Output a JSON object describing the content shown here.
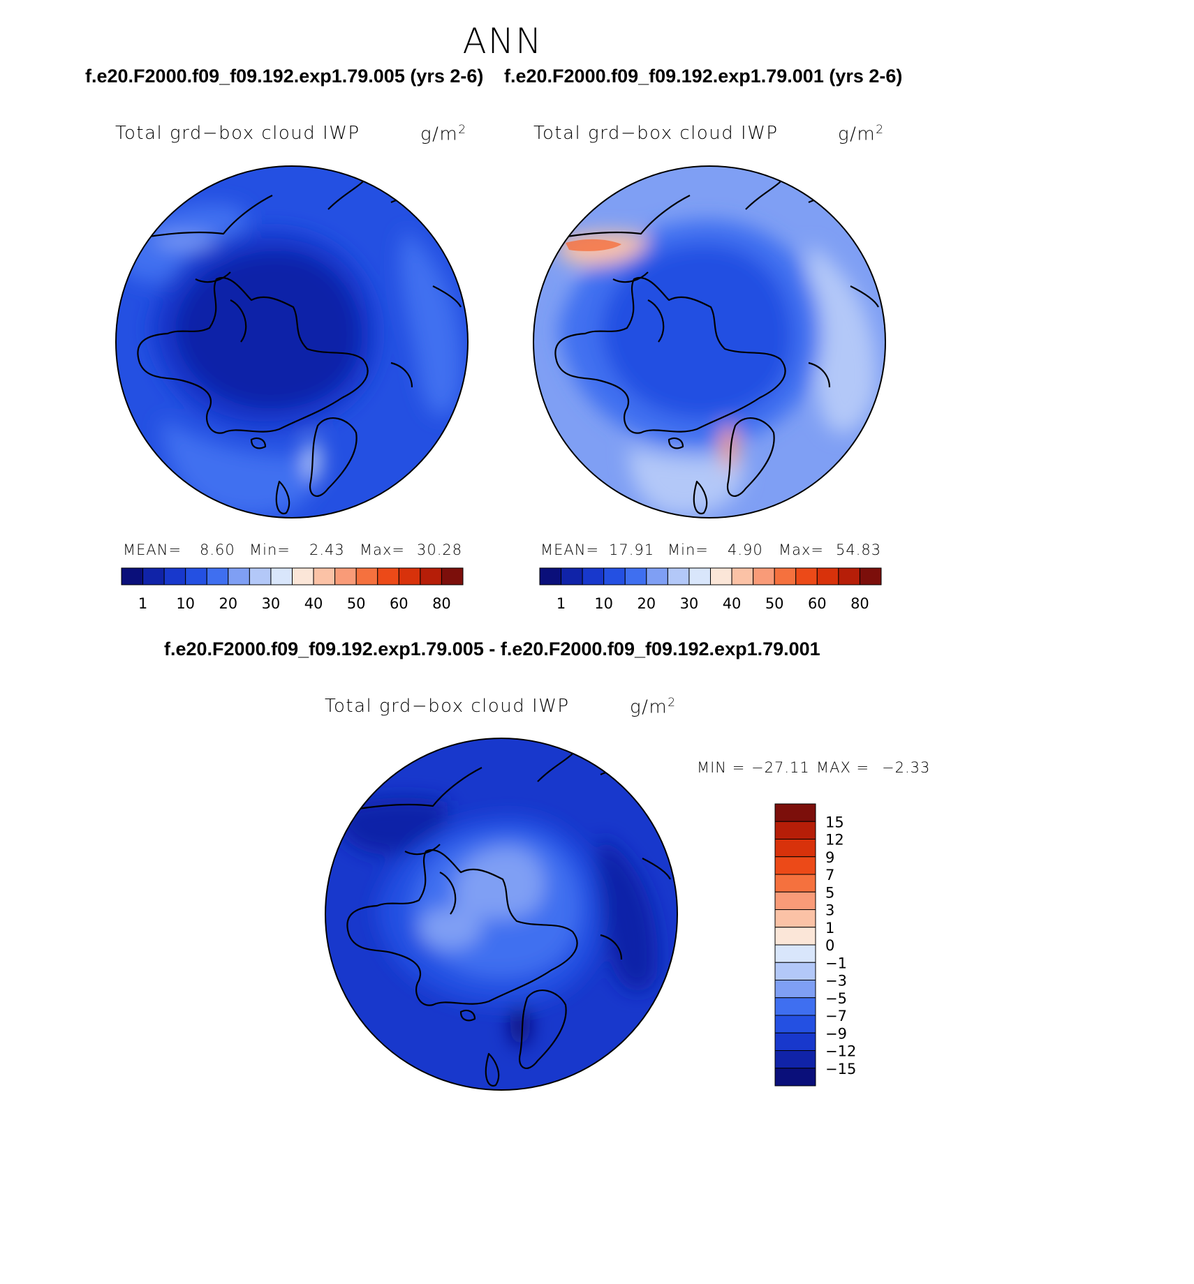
{
  "page_title": "ANN",
  "header": {
    "left_case": "f.e20.F2000.f09_f09.192.exp1.79.005 (yrs 2-6)",
    "right_case": "f.e20.F2000.f09_f09.192.exp1.79.001 (yrs 2-6)"
  },
  "diff_header": "f.e20.F2000.f09_f09.192.exp1.79.005 - f.e20.F2000.f09_f09.192.exp1.79.001",
  "variable": "Total grd−box cloud IWP",
  "units": "g/m",
  "units_exp": "2",
  "panels": [
    {
      "mean_label": "MEAN=",
      "mean": "8.60",
      "min_label": "Min=",
      "min": "2.43",
      "max_label": "Max=",
      "max": "30.28"
    },
    {
      "mean_label": "MEAN=",
      "mean": "17.91",
      "min_label": "Min=",
      "min": "4.90",
      "max_label": "Max=",
      "max": "54.83"
    }
  ],
  "diff_stats": {
    "min_label": "MIN =",
    "min": "−27.11",
    "max_label": "MAX =",
    "max": "−2.33"
  },
  "colorbar_labels": [
    "1",
    "10",
    "20",
    "30",
    "40",
    "50",
    "60",
    "80"
  ],
  "diff_colorbar_labels": [
    "15",
    "12",
    "9",
    "7",
    "5",
    "3",
    "1",
    "0",
    "−1",
    "−3",
    "−5",
    "−7",
    "−9",
    "−12",
    "−15"
  ],
  "colors": {
    "main_scale": [
      "#0a0f7a",
      "#1023a8",
      "#1838cc",
      "#2450e2",
      "#3f6ff0",
      "#7f9ff4",
      "#b3c8f8",
      "#d9e6fb",
      "#fbe6d8",
      "#fbc2a6",
      "#f99b78",
      "#f5713e",
      "#ec4a18",
      "#d8320b",
      "#b61e08",
      "#7c0f0b"
    ],
    "diff_scale_top_down": [
      "#7c0f0b",
      "#b61e08",
      "#d8320b",
      "#ec4a18",
      "#f5713e",
      "#f99b78",
      "#fbc2a6",
      "#fbe6d8",
      "#d9e6fb",
      "#b3c8f8",
      "#7f9ff4",
      "#3f6ff0",
      "#2450e2",
      "#1838cc",
      "#1023a8",
      "#0a0f7a"
    ]
  },
  "chart_data": [
    {
      "type": "heatmap",
      "projection": "north polar stereographic",
      "title": "Total grd−box cloud IWP",
      "units": "g/m2",
      "case": "f.e20.F2000.f09_f09.192.exp1.79.005 (yrs 2-6)",
      "mean": 8.6,
      "min": 2.43,
      "max": 30.28,
      "levels": [
        1,
        10,
        20,
        30,
        40,
        50,
        60,
        80
      ]
    },
    {
      "type": "heatmap",
      "projection": "north polar stereographic",
      "title": "Total grd−box cloud IWP",
      "units": "g/m2",
      "case": "f.e20.F2000.f09_f09.192.exp1.79.001 (yrs 2-6)",
      "mean": 17.91,
      "min": 4.9,
      "max": 54.83,
      "levels": [
        1,
        10,
        20,
        30,
        40,
        50,
        60,
        80
      ]
    },
    {
      "type": "heatmap",
      "projection": "north polar stereographic",
      "title": "Total grd−box cloud IWP",
      "units": "g/m2",
      "case": "f.e20.F2000.f09_f09.192.exp1.79.005 - f.e20.F2000.f09_f09.192.exp1.79.001",
      "min": -27.11,
      "max": -2.33,
      "levels": [
        15,
        12,
        9,
        7,
        5,
        3,
        1,
        0,
        -1,
        -3,
        -5,
        -7,
        -9,
        -12,
        -15
      ]
    }
  ]
}
